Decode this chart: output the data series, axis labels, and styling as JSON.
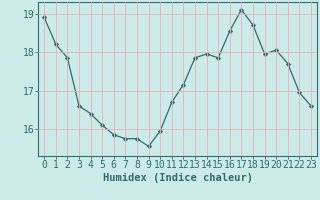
{
  "x": [
    0,
    1,
    2,
    3,
    4,
    5,
    6,
    7,
    8,
    9,
    10,
    11,
    12,
    13,
    14,
    15,
    16,
    17,
    18,
    19,
    20,
    21,
    22,
    23
  ],
  "y": [
    18.9,
    18.2,
    17.85,
    16.6,
    16.4,
    16.1,
    15.85,
    15.75,
    15.75,
    15.55,
    15.95,
    16.7,
    17.15,
    17.85,
    17.95,
    17.85,
    18.55,
    19.1,
    18.7,
    17.95,
    18.05,
    17.7,
    16.95,
    16.6
  ],
  "line_color": "#2d6e6e",
  "marker": "D",
  "marker_size": 2.2,
  "bg_color": "#cceae8",
  "grid_color": "#e8b0b8",
  "axis_color": "#2d6e6e",
  "xlabel": "Humidex (Indice chaleur)",
  "ylim": [
    15.3,
    19.3
  ],
  "xlim": [
    -0.5,
    23.5
  ],
  "yticks": [
    16,
    17,
    18,
    19
  ],
  "xlabel_fontsize": 7.5,
  "tick_fontsize": 7.0
}
